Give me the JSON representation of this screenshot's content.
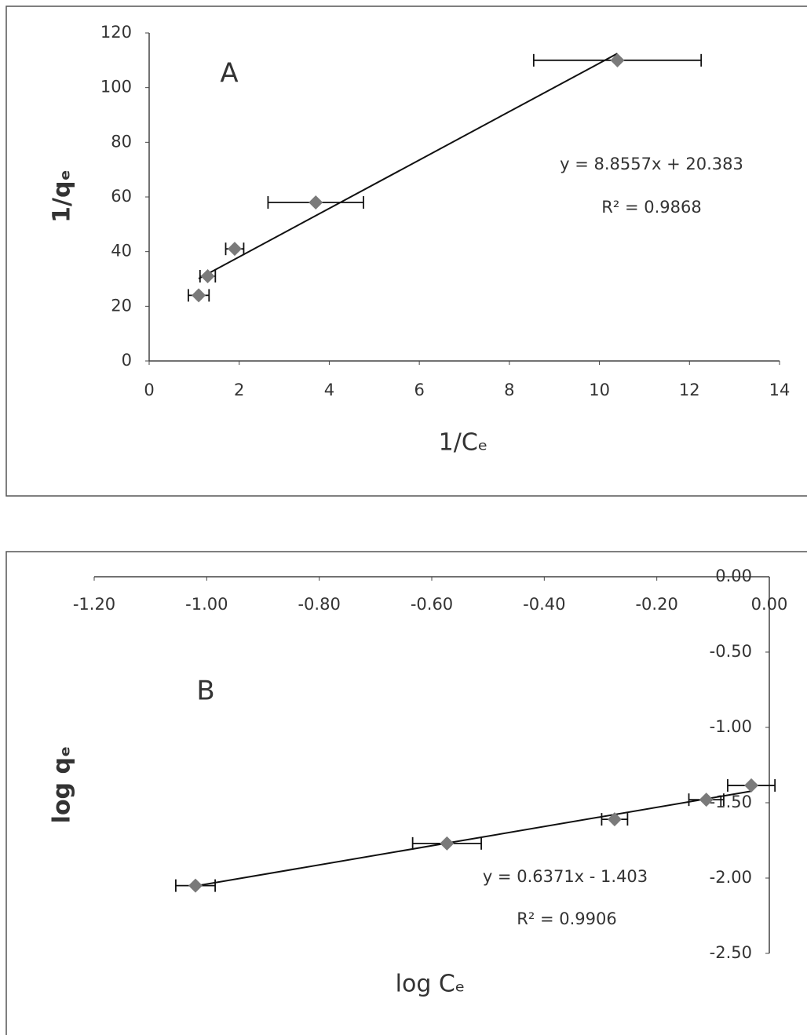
{
  "chart_data": [
    {
      "type": "scatter",
      "annotation": "A",
      "x_label": "1/Cₑ",
      "y_label": "1/qₑ",
      "color": "#7a7a7a",
      "x": [
        1.1,
        1.3,
        1.9,
        3.7,
        10.4
      ],
      "values": [
        24,
        31,
        41,
        58,
        110
      ],
      "xerr": [
        0.23,
        0.17,
        0.2,
        1.06,
        1.86
      ],
      "xlim": [
        0,
        14
      ],
      "xticks": [
        0,
        2,
        4,
        6,
        8,
        10,
        12,
        14
      ],
      "ylim": [
        0,
        120
      ],
      "yticks": [
        0,
        20,
        40,
        60,
        80,
        100,
        120
      ],
      "trendline": {
        "slope": 8.8557,
        "intercept": 20.383,
        "equation": "y = 8.8557x + 20.383",
        "r2": "R² = 0.9868"
      }
    },
    {
      "type": "scatter",
      "annotation": "B",
      "x_label": "log Cₑ",
      "y_label": "log qₑ",
      "color": "#7a7a7a",
      "x": [
        -1.02,
        -0.573,
        -0.275,
        -0.112,
        -0.032
      ],
      "values": [
        -2.05,
        -1.77,
        -1.61,
        -1.48,
        -1.385
      ],
      "xerr": [
        0.035,
        0.061,
        0.023,
        0.031,
        0.042
      ],
      "xlim": [
        -1.2,
        0
      ],
      "xticks": [
        {
          "value": -1.2,
          "label": "-1.20"
        },
        {
          "value": -1.0,
          "label": "-1.00"
        },
        {
          "value": -0.8,
          "label": "-0.80"
        },
        {
          "value": -0.6,
          "label": "-0.60"
        },
        {
          "value": -0.4,
          "label": "-0.40"
        },
        {
          "value": -0.2,
          "label": "-0.20"
        },
        {
          "value": 0,
          "label": "0.00"
        }
      ],
      "ylim": [
        -2.5,
        0
      ],
      "yticks": [
        {
          "value": 0,
          "label": "0.00"
        },
        {
          "value": -0.5,
          "label": "-0.50"
        },
        {
          "value": -1.0,
          "label": "-1.00"
        },
        {
          "value": -1.5,
          "label": "-1.50"
        },
        {
          "value": -2.0,
          "label": "-2.00"
        },
        {
          "value": -2.5,
          "label": "-2.50"
        }
      ],
      "trendline": {
        "slope": 0.6371,
        "intercept": -1.403,
        "equation": "y = 0.6371x - 1.403",
        "r2": "R² = 0.9906"
      }
    }
  ]
}
